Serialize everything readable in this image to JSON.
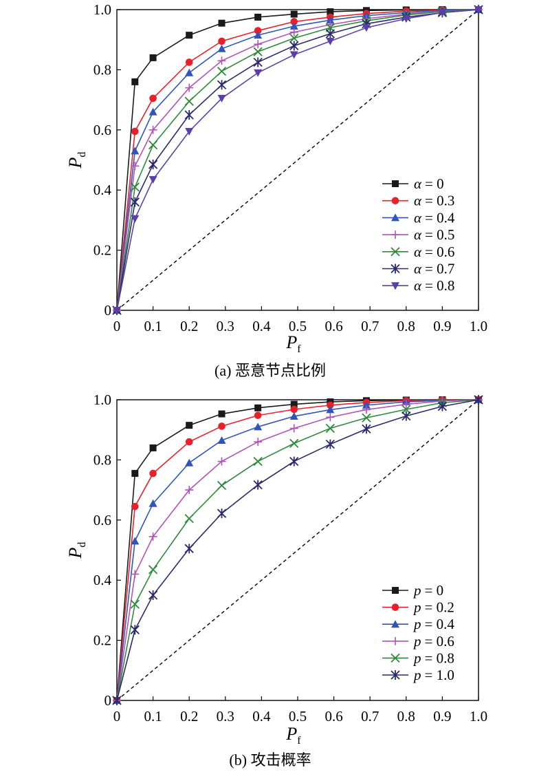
{
  "colors": {
    "black": "#1a1a1a",
    "red": "#e8202a",
    "blue": "#2f55b8",
    "violet": "#b152b8",
    "green": "#2e8a3a",
    "navy": "#2a2a6a",
    "purple": "#5a3fa8"
  },
  "chart_data": [
    {
      "type": "line",
      "caption": "(a) 恶意节点比例",
      "xlabel": "P",
      "xlabel_sub": "f",
      "ylabel": "P",
      "ylabel_sub": "d",
      "xlim": [
        0,
        1.0
      ],
      "ylim": [
        0,
        1.0
      ],
      "xticks": [
        0,
        0.1,
        0.2,
        0.3,
        0.4,
        0.5,
        0.6,
        0.7,
        0.8,
        0.9,
        1.0
      ],
      "xtick_labels": [
        "0",
        "0.1",
        "0.2",
        "0.3",
        "0.4",
        "0.5",
        "0.6",
        "0.7",
        "0.8",
        "0.9",
        "1.0"
      ],
      "yticks": [
        0,
        0.2,
        0.4,
        0.6,
        0.8,
        1.0
      ],
      "ytick_labels": [
        "0",
        "0.2",
        "0.4",
        "0.6",
        "0.8",
        "1.0"
      ],
      "legend_position": "right",
      "legend_symbol": "α",
      "grid": false,
      "reference_line": {
        "style": "dashed",
        "x": [
          0,
          1.0
        ],
        "y": [
          0,
          1.0
        ]
      },
      "x": [
        0,
        0.05,
        0.1,
        0.2,
        0.29,
        0.39,
        0.49,
        0.59,
        0.69,
        0.8,
        0.9,
        1.0
      ],
      "series": [
        {
          "name": "α = 0",
          "value_label": "= 0",
          "marker": "square",
          "color": "black",
          "values": [
            0,
            0.76,
            0.84,
            0.915,
            0.955,
            0.975,
            0.985,
            0.993,
            0.997,
            0.999,
            1.0,
            1.0
          ]
        },
        {
          "name": "α = 0.3",
          "value_label": "= 0.3",
          "marker": "circle",
          "color": "red",
          "values": [
            0,
            0.595,
            0.705,
            0.825,
            0.895,
            0.93,
            0.96,
            0.975,
            0.987,
            0.995,
            0.999,
            1.0
          ]
        },
        {
          "name": "α = 0.4",
          "value_label": "= 0.4",
          "marker": "triangle-up",
          "color": "blue",
          "values": [
            0,
            0.53,
            0.66,
            0.79,
            0.87,
            0.915,
            0.945,
            0.965,
            0.98,
            0.99,
            0.998,
            1.0
          ]
        },
        {
          "name": "α = 0.5",
          "value_label": "= 0.5",
          "marker": "plus",
          "color": "violet",
          "values": [
            0,
            0.48,
            0.6,
            0.74,
            0.83,
            0.885,
            0.925,
            0.95,
            0.97,
            0.985,
            0.995,
            1.0
          ]
        },
        {
          "name": "α = 0.6",
          "value_label": "= 0.6",
          "marker": "x",
          "color": "green",
          "values": [
            0,
            0.41,
            0.55,
            0.695,
            0.795,
            0.86,
            0.905,
            0.94,
            0.963,
            0.982,
            0.994,
            1.0
          ]
        },
        {
          "name": "α = 0.7",
          "value_label": "= 0.7",
          "marker": "star",
          "color": "navy",
          "values": [
            0,
            0.36,
            0.485,
            0.65,
            0.75,
            0.825,
            0.88,
            0.92,
            0.953,
            0.975,
            0.99,
            1.0
          ]
        },
        {
          "name": "α = 0.8",
          "value_label": "= 0.8",
          "marker": "triangle-down",
          "color": "purple",
          "values": [
            0,
            0.305,
            0.435,
            0.595,
            0.705,
            0.79,
            0.85,
            0.895,
            0.94,
            0.97,
            0.99,
            1.0
          ]
        }
      ]
    },
    {
      "type": "line",
      "caption": "(b) 攻击概率",
      "xlabel": "P",
      "xlabel_sub": "f",
      "ylabel": "P",
      "ylabel_sub": "d",
      "xlim": [
        0,
        1.0
      ],
      "ylim": [
        0,
        1.0
      ],
      "xticks": [
        0,
        0.1,
        0.2,
        0.3,
        0.4,
        0.5,
        0.6,
        0.7,
        0.8,
        0.9,
        1.0
      ],
      "xtick_labels": [
        "0",
        "0.1",
        "0.2",
        "0.3",
        "0.4",
        "0.5",
        "0.6",
        "0.7",
        "0.8",
        "0.9",
        "1.0"
      ],
      "yticks": [
        0,
        0.2,
        0.4,
        0.6,
        0.8,
        1.0
      ],
      "ytick_labels": [
        "0",
        "0.2",
        "0.4",
        "0.6",
        "0.8",
        "1.0"
      ],
      "legend_position": "bottom-right",
      "legend_symbol": "p",
      "grid": false,
      "reference_line": {
        "style": "dashed",
        "x": [
          0,
          1.0
        ],
        "y": [
          0,
          1.0
        ]
      },
      "x": [
        0,
        0.05,
        0.1,
        0.2,
        0.29,
        0.39,
        0.49,
        0.59,
        0.69,
        0.8,
        0.9,
        1.0
      ],
      "series": [
        {
          "name": "p = 0",
          "value_label": "= 0",
          "marker": "square",
          "color": "black",
          "values": [
            0,
            0.755,
            0.84,
            0.915,
            0.953,
            0.973,
            0.985,
            0.993,
            0.997,
            0.999,
            1.0,
            1.0
          ]
        },
        {
          "name": "p = 0.2",
          "value_label": "= 0.2",
          "marker": "circle",
          "color": "red",
          "values": [
            0,
            0.645,
            0.755,
            0.86,
            0.912,
            0.948,
            0.968,
            0.982,
            0.991,
            0.997,
            0.999,
            1.0
          ]
        },
        {
          "name": "p = 0.4",
          "value_label": "= 0.4",
          "marker": "triangle-up",
          "color": "blue",
          "values": [
            0,
            0.53,
            0.655,
            0.79,
            0.865,
            0.91,
            0.945,
            0.967,
            0.982,
            0.993,
            0.998,
            1.0
          ]
        },
        {
          "name": "p = 0.6",
          "value_label": "= 0.6",
          "marker": "plus",
          "color": "violet",
          "values": [
            0,
            0.42,
            0.545,
            0.7,
            0.795,
            0.86,
            0.905,
            0.942,
            0.967,
            0.985,
            0.996,
            1.0
          ]
        },
        {
          "name": "p = 0.8",
          "value_label": "= 0.8",
          "marker": "x",
          "color": "green",
          "values": [
            0,
            0.32,
            0.435,
            0.605,
            0.715,
            0.795,
            0.855,
            0.905,
            0.94,
            0.968,
            0.99,
            1.0
          ]
        },
        {
          "name": "p = 1.0",
          "value_label": "= 1.0",
          "marker": "star",
          "color": "navy",
          "values": [
            0,
            0.235,
            0.35,
            0.505,
            0.622,
            0.717,
            0.795,
            0.852,
            0.903,
            0.946,
            0.978,
            1.0
          ]
        }
      ]
    }
  ]
}
